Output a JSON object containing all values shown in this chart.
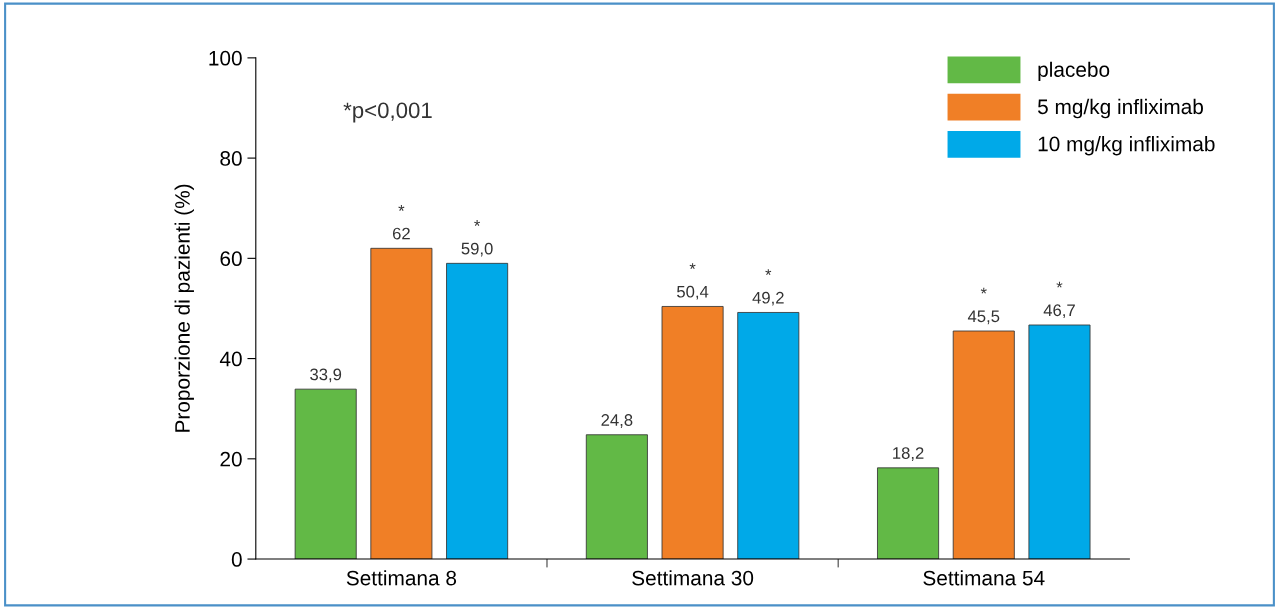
{
  "chart_data": {
    "type": "bar",
    "ylabel": "Proporzione di pazienti (%)",
    "categories": [
      "Settimana 8",
      "Settimana 30",
      "Settimana 54"
    ],
    "series": [
      {
        "name": "placebo",
        "color": "#62b946",
        "values": [
          33.9,
          24.8,
          18.2
        ],
        "value_labels": [
          "33,9",
          "24,8",
          "18,2"
        ]
      },
      {
        "name": "5 mg/kg infliximab",
        "color": "#f07f26",
        "values": [
          62,
          50.4,
          45.5
        ],
        "value_labels": [
          "*\n62",
          "*\n50,4",
          "*\n45,5"
        ]
      },
      {
        "name": "10 mg/kg infliximab",
        "color": "#00a9e8",
        "values": [
          59.0,
          49.2,
          46.7
        ],
        "value_labels": [
          "*\n59,0",
          "*\n49,2",
          "*\n46,7"
        ]
      }
    ],
    "ylim": [
      0,
      100
    ],
    "yticks": [
      0,
      20,
      40,
      60,
      80,
      100
    ],
    "annotations": [
      "*p<0,001"
    ],
    "legend": "top right",
    "grid": false
  }
}
